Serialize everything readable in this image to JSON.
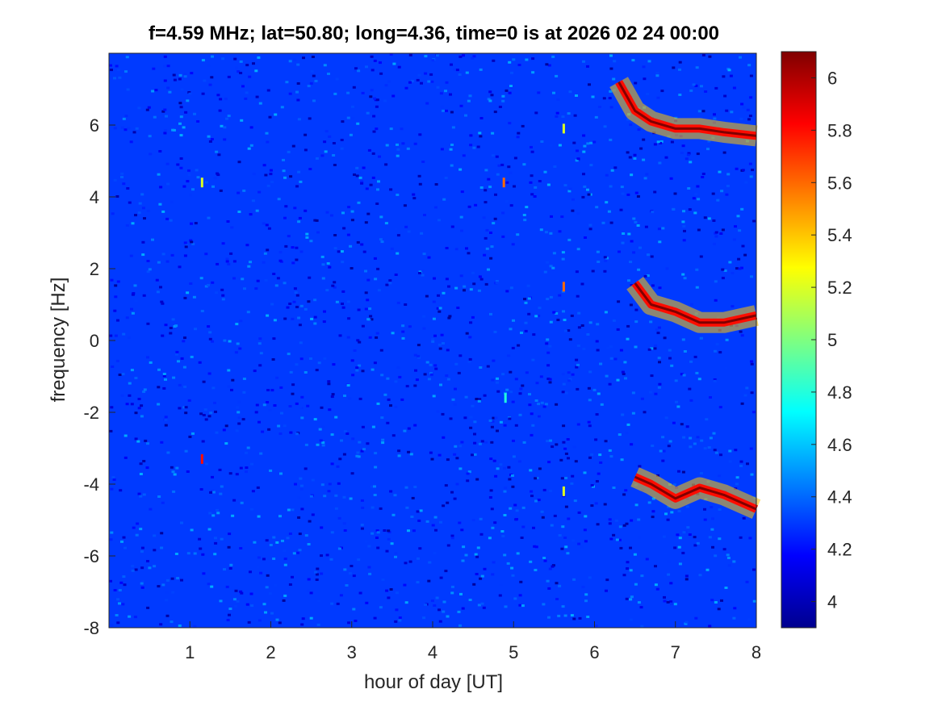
{
  "chart_data": {
    "type": "heatmap",
    "title": "f=4.59 MHz;  lat=50.80; long=4.36, time=0 is at 2026 02 24 00:00",
    "xlabel": "hour of day [UT]",
    "ylabel": "frequency [Hz]",
    "xlim": [
      0,
      8
    ],
    "ylim": [
      -8,
      8
    ],
    "x_ticks": [
      "1",
      "2",
      "3",
      "4",
      "5",
      "6",
      "7",
      "8"
    ],
    "y_ticks": [
      "-8",
      "-6",
      "-4",
      "-2",
      "0",
      "2",
      "4",
      "6"
    ],
    "colorbar": {
      "range": [
        3.9,
        6.1
      ],
      "ticks": [
        "4",
        "4.2",
        "4.4",
        "4.6",
        "4.8",
        "5",
        "5.2",
        "5.4",
        "5.6",
        "5.8",
        "6"
      ],
      "colormap": "jet"
    },
    "background_level": 4.3,
    "traces": [
      {
        "name": "upper",
        "x": [
          6.3,
          6.5,
          6.7,
          7.0,
          7.3,
          7.6,
          8.0
        ],
        "y": [
          7.2,
          6.4,
          6.1,
          5.9,
          5.9,
          5.8,
          5.7
        ],
        "level": 6.0
      },
      {
        "name": "middle",
        "x": [
          6.5,
          6.7,
          7.0,
          7.3,
          7.6,
          8.0
        ],
        "y": [
          1.6,
          1.0,
          0.8,
          0.5,
          0.5,
          0.7
        ],
        "level": 6.0
      },
      {
        "name": "lower",
        "x": [
          6.5,
          6.7,
          7.0,
          7.3,
          7.6,
          8.0
        ],
        "y": [
          -3.8,
          -4.0,
          -4.4,
          -4.1,
          -4.3,
          -4.7
        ],
        "level": 6.0
      }
    ],
    "spikes": [
      {
        "x": 1.15,
        "y": -3.3,
        "level": 5.8
      },
      {
        "x": 1.15,
        "y": 4.4,
        "level": 5.2
      },
      {
        "x": 4.88,
        "y": 4.4,
        "level": 5.6
      },
      {
        "x": 4.9,
        "y": -1.6,
        "level": 4.8
      },
      {
        "x": 5.62,
        "y": 1.5,
        "level": 5.6
      },
      {
        "x": 5.62,
        "y": 5.9,
        "level": 5.2
      },
      {
        "x": 5.62,
        "y": -4.2,
        "level": 5.2
      }
    ]
  }
}
